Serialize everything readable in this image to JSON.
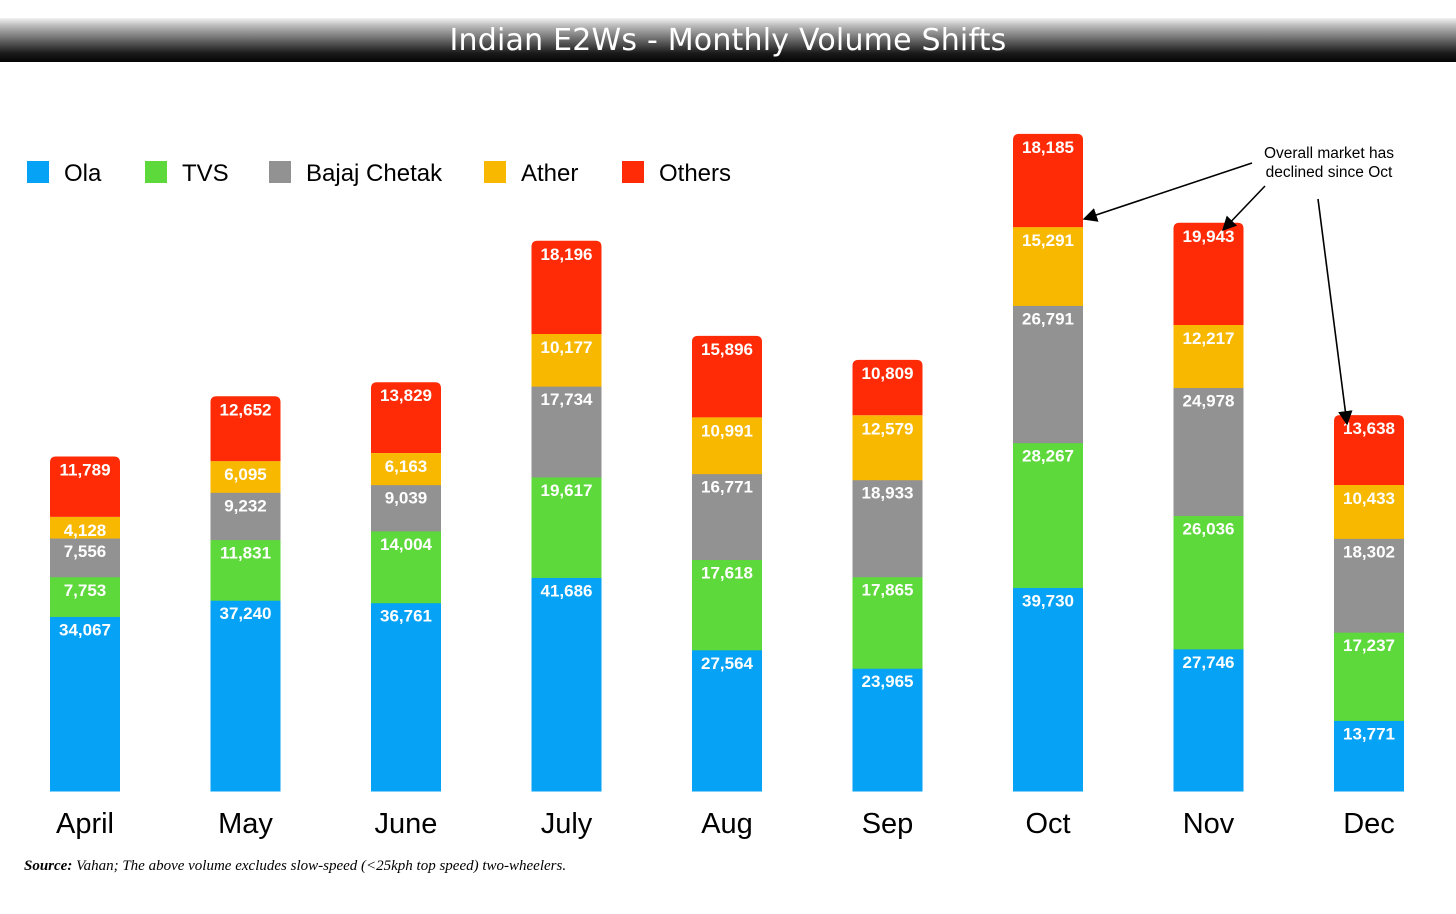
{
  "title": "Indian E2Ws - Monthly Volume Shifts",
  "source": {
    "prefix": "Source:",
    "text": "Vahan; The above volume excludes slow-speed (<25kph top speed) two-wheelers."
  },
  "annotation": {
    "lines": [
      "Overall market has",
      "declined since Oct"
    ]
  },
  "colors": {
    "Ola": "#05A2F5",
    "TVS": "#5DD93B",
    "Bajaj Chetak": "#929292",
    "Ather": "#F8B800",
    "Others": "#FE2B06"
  },
  "chart_data": {
    "type": "bar",
    "stacked": true,
    "categories": [
      "April",
      "May",
      "June",
      "July",
      "Aug",
      "Sep",
      "Oct",
      "Nov",
      "Dec"
    ],
    "series": [
      {
        "name": "Ola",
        "values": [
          34067,
          37240,
          36761,
          41686,
          27564,
          23965,
          39730,
          27746,
          13771
        ]
      },
      {
        "name": "TVS",
        "values": [
          7753,
          11831,
          14004,
          19617,
          17618,
          17865,
          28267,
          26036,
          17237
        ]
      },
      {
        "name": "Bajaj Chetak",
        "values": [
          7556,
          9232,
          9039,
          17734,
          16771,
          18933,
          26791,
          24978,
          18302
        ]
      },
      {
        "name": "Ather",
        "values": [
          4128,
          6095,
          6163,
          10177,
          10991,
          12579,
          15291,
          12217,
          10433
        ]
      },
      {
        "name": "Others",
        "values": [
          11789,
          12652,
          13829,
          18196,
          15896,
          10809,
          18185,
          19943,
          13638
        ]
      }
    ],
    "legend_position": "top-left",
    "grid": false
  }
}
